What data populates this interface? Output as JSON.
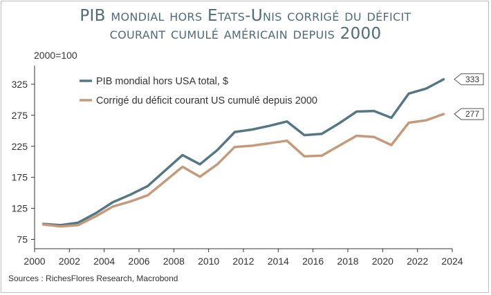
{
  "title_line1": "PIB mondial hors Etats-Unis corrigé du déficit",
  "title_line2": "courant cumulé américain depuis 2000",
  "source": "Sources : RichesFlores Research, Macrobond",
  "colors": {
    "title": "#4f6b78"
  },
  "chart_data": {
    "type": "line",
    "ylabel": "2000=100",
    "xlim": [
      2000,
      2024
    ],
    "ylim": [
      60,
      355
    ],
    "y_ticks": [
      75,
      125,
      175,
      225,
      275,
      325
    ],
    "x_ticks": [
      2000,
      2002,
      2004,
      2006,
      2008,
      2010,
      2012,
      2014,
      2016,
      2018,
      2020,
      2022,
      2024
    ],
    "grid": false,
    "legend_position": "top-left",
    "series": [
      {
        "name": "PIB mondial hors USA total, $",
        "color": "#557683",
        "x": [
          2000.5,
          2001.5,
          2002.5,
          2003.5,
          2004.5,
          2005.5,
          2006.5,
          2007.5,
          2008.5,
          2009.5,
          2010.5,
          2011.5,
          2012.5,
          2013.5,
          2014.5,
          2015.5,
          2016.5,
          2017.5,
          2018.5,
          2019.5,
          2020.5,
          2021.5,
          2022.5,
          2023.5
        ],
        "values": [
          100,
          98,
          102,
          117,
          135,
          147,
          161,
          186,
          211,
          196,
          219,
          248,
          252,
          258,
          265,
          243,
          245,
          262,
          281,
          282,
          271,
          310,
          318,
          333
        ],
        "end_label": "333"
      },
      {
        "name": "Corrigé du déficit courant US cumulé depuis 2000",
        "color": "#c49a7a",
        "x": [
          2000.5,
          2001.5,
          2002.5,
          2003.5,
          2004.5,
          2005.5,
          2006.5,
          2007.5,
          2008.5,
          2009.5,
          2010.5,
          2011.5,
          2012.5,
          2013.5,
          2014.5,
          2015.5,
          2016.5,
          2017.5,
          2018.5,
          2019.5,
          2020.5,
          2021.5,
          2022.5,
          2023.5
        ],
        "values": [
          99,
          96,
          98,
          112,
          128,
          136,
          146,
          169,
          192,
          176,
          196,
          224,
          226,
          230,
          234,
          209,
          210,
          226,
          242,
          240,
          227,
          263,
          267,
          277
        ],
        "end_label": "277"
      }
    ]
  }
}
